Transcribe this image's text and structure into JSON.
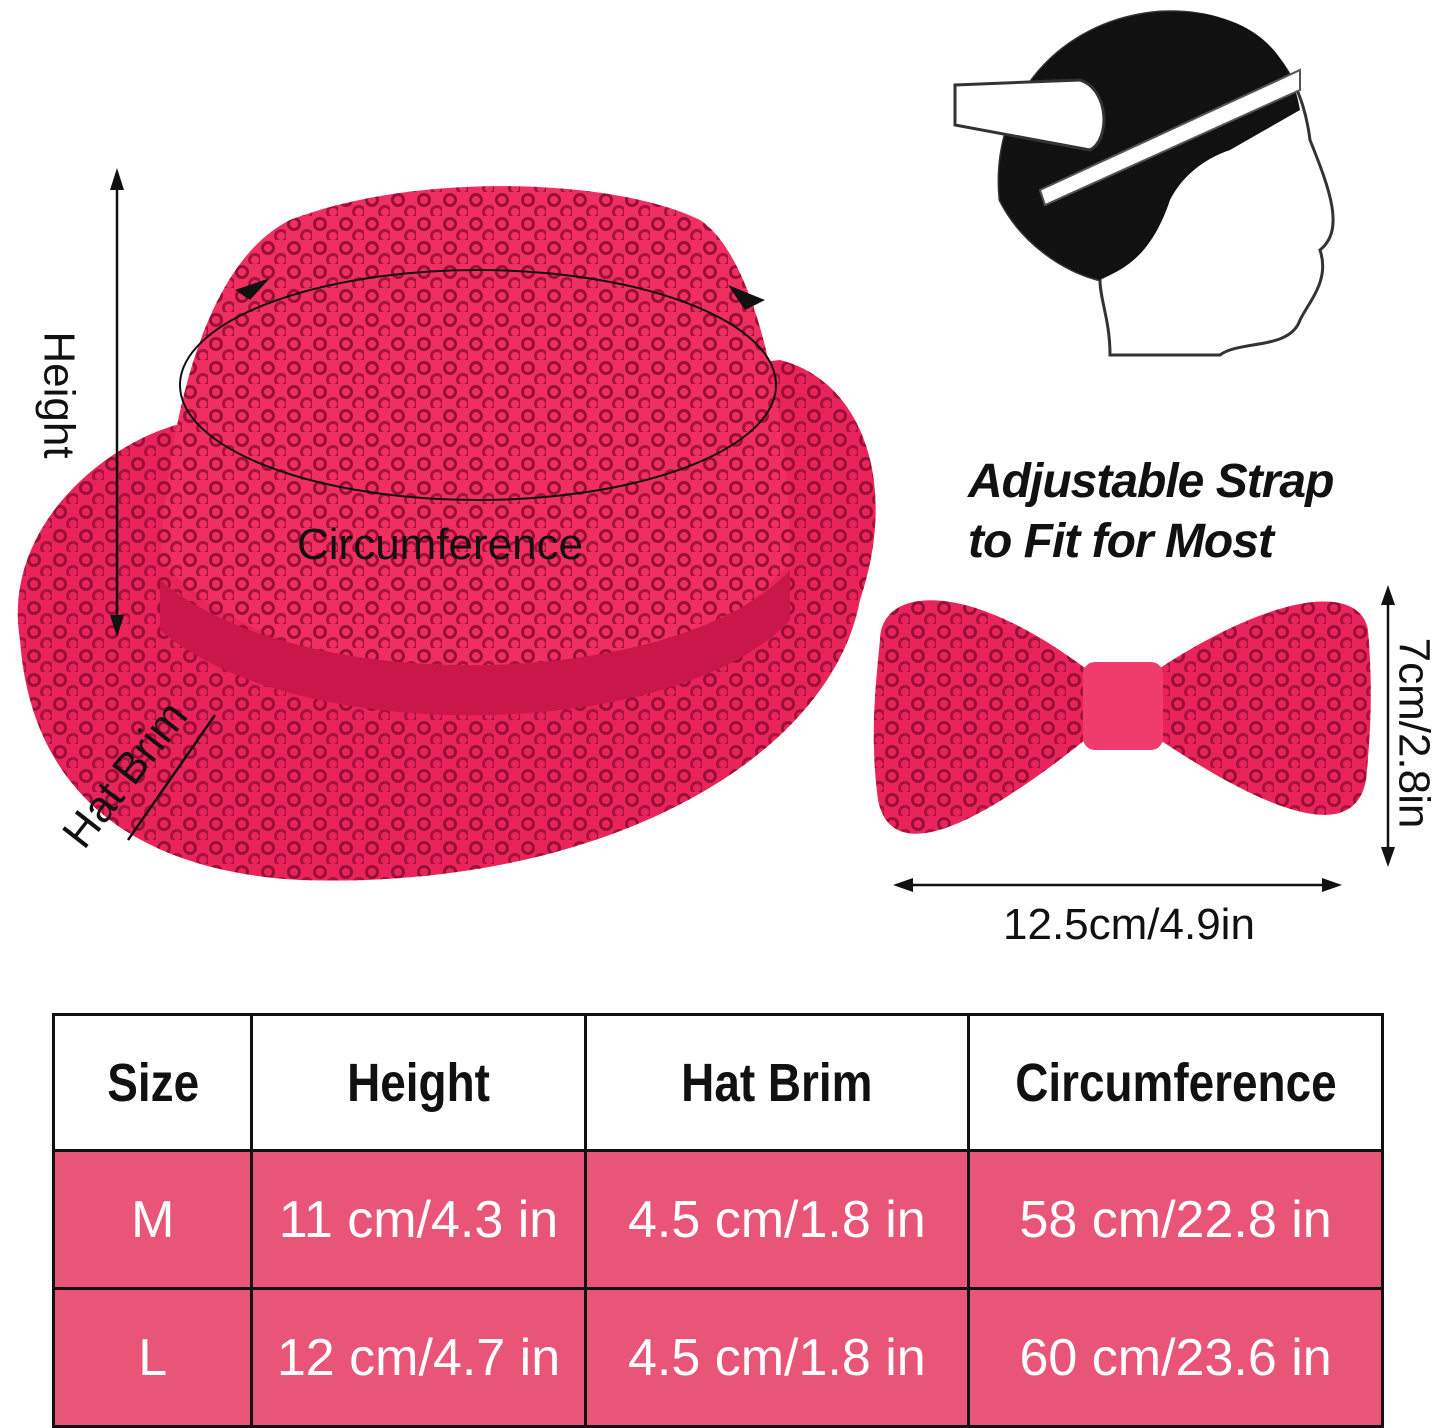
{
  "labels": {
    "height": "Height",
    "circumference": "Circumference",
    "hat_brim": "Hat Brim",
    "bow_height": "7cm/2.8in",
    "bow_width": "12.5cm/4.9in"
  },
  "strap_text": [
    "Adjustable Strap",
    "to Fit for Most"
  ],
  "colors": {
    "product": "#e8245a",
    "table_row": "#e85577"
  },
  "table": {
    "headers": [
      "Size",
      "Height",
      "Hat Brim",
      "Circumference"
    ],
    "rows": [
      [
        "M",
        "11 cm/4.3 in",
        "4.5 cm/1.8 in",
        "58 cm/22.8 in"
      ],
      [
        "L",
        "12 cm/4.7 in",
        "4.5 cm/1.8 in",
        "60 cm/23.6 in"
      ]
    ]
  }
}
